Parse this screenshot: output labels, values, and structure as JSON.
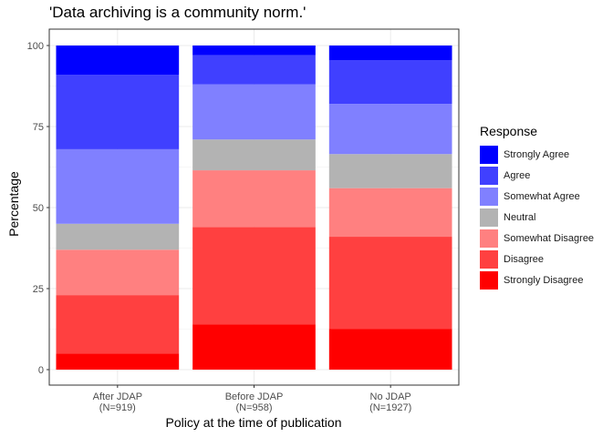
{
  "chart_data": {
    "type": "bar",
    "stacked": true,
    "title": "'Data archiving is a community norm.'",
    "xlabel": "Policy at the time of publication",
    "ylabel": "Percentage",
    "ylim": [
      0,
      100
    ],
    "yticks": [
      0,
      25,
      50,
      75,
      100
    ],
    "grid": true,
    "legend_title": "Response",
    "legend_position": "right",
    "categories": [
      "After JDAP\n(N=919)",
      "Before JDAP\n(N=958)",
      "No JDAP\n(N=1927)"
    ],
    "series": [
      {
        "name": "Strongly Disagree",
        "color": "#ff0000",
        "values": [
          5,
          14,
          12.5
        ]
      },
      {
        "name": "Disagree",
        "color": "#ff4040",
        "values": [
          18,
          30,
          28.5
        ]
      },
      {
        "name": "Somewhat Disagree",
        "color": "#ff8080",
        "values": [
          14,
          17.5,
          15
        ]
      },
      {
        "name": "Neutral",
        "color": "#b3b3b3",
        "values": [
          8,
          9.5,
          10.5
        ]
      },
      {
        "name": "Somewhat Agree",
        "color": "#8080ff",
        "values": [
          23,
          17,
          15.5
        ]
      },
      {
        "name": "Agree",
        "color": "#4040ff",
        "values": [
          23,
          9,
          13.5
        ]
      },
      {
        "name": "Strongly Agree",
        "color": "#0000ff",
        "values": [
          9,
          3,
          4.5
        ]
      }
    ]
  }
}
